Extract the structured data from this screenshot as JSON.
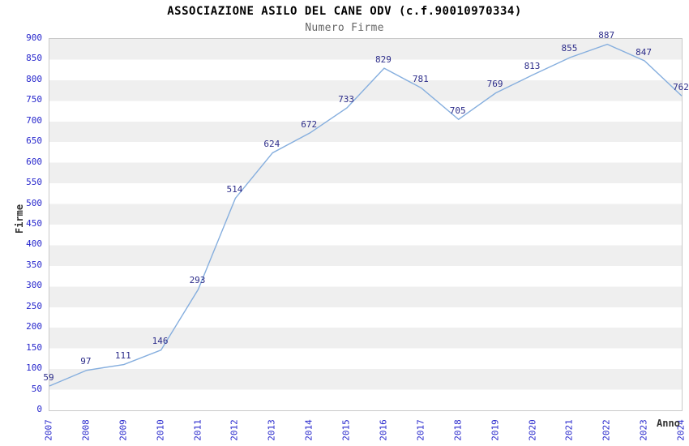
{
  "chart_data": {
    "type": "line",
    "title": "ASSOCIAZIONE ASILO DEL CANE ODV (c.f.90010970334)",
    "subtitle": "Numero Firme",
    "xlabel": "Anno",
    "ylabel": "Firme",
    "categories": [
      "2007",
      "2008",
      "2009",
      "2010",
      "2011",
      "2012",
      "2013",
      "2014",
      "2015",
      "2016",
      "2017",
      "2018",
      "2019",
      "2020",
      "2021",
      "2022",
      "2023",
      "2024"
    ],
    "series": [
      {
        "name": "Numero Firme",
        "values": [
          59,
          97,
          111,
          146,
          293,
          514,
          624,
          672,
          733,
          829,
          781,
          705,
          769,
          813,
          855,
          887,
          847,
          762
        ]
      }
    ],
    "ylim": [
      0,
      900
    ],
    "yticks": [
      0,
      50,
      100,
      150,
      200,
      250,
      300,
      350,
      400,
      450,
      500,
      550,
      600,
      650,
      700,
      750,
      800,
      850,
      900
    ],
    "grid": "alternating horizontal 50-unit bands, no vertical gridlines",
    "legend": "none",
    "point_labels_visible": true,
    "xtick_rotation_deg": 90,
    "colors": {
      "line": "#85aede",
      "point_label": "#2d2d8a",
      "tick_label": "#2626cc",
      "band": "#efefef",
      "band_edge": "#e2e2e2",
      "plot_border": "#c9c9c9",
      "title": "#000000",
      "subtitle": "#666666",
      "axis_title": "#333333",
      "background": "#ffffff"
    }
  }
}
